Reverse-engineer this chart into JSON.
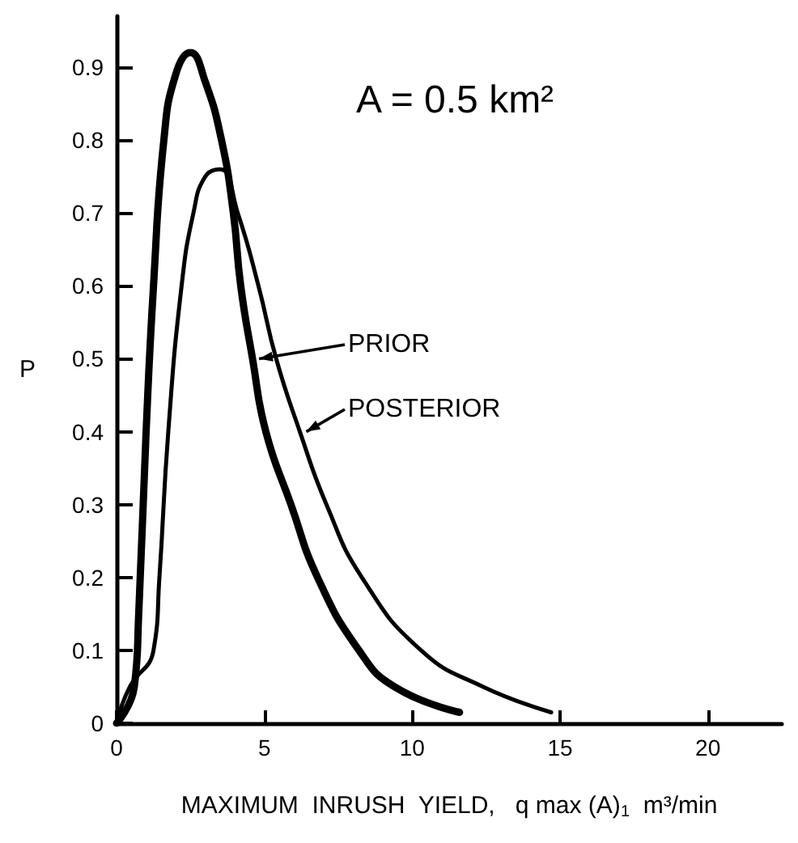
{
  "chart_data": {
    "type": "line",
    "xlabel": "MAXIMUM  INRUSH  YIELD,   q max (A)$_{1}$  m³/min",
    "ylabel": "P",
    "annotations": [
      "A = 0.5 km²"
    ],
    "xlim": [
      0,
      22.5
    ],
    "xticks": [
      0,
      5,
      10,
      15,
      20
    ],
    "ylim": [
      0,
      0.97
    ],
    "yticks": [
      {
        "value": 0,
        "label": "0"
      },
      {
        "value": 0.1,
        "label": "0.1"
      },
      {
        "value": 0.2,
        "label": "0.2"
      },
      {
        "value": 0.3,
        "label": "0.3"
      },
      {
        "value": 0.4,
        "label": "0.4"
      },
      {
        "value": 0.5,
        "label": "0.5"
      },
      {
        "value": 0.6,
        "label": "0.6"
      },
      {
        "value": 0.7,
        "label": "0.7"
      },
      {
        "value": 0.8,
        "label": "0.8"
      },
      {
        "value": 0.9,
        "label": "0.9"
      }
    ],
    "grid": false,
    "legend": "bottom left",
    "marker": "none",
    "line_style": "solid",
    "series": [
      {
        "name": "PRIOR",
        "color": "#000000",
        "x": [
          0,
          0.6,
          0.75,
          1.0,
          1.25,
          1.6,
          2.0,
          2.5,
          3.0,
          3.55,
          3.95,
          4.2,
          4.6,
          5.05,
          5.9,
          6.8,
          8.2,
          9.4,
          11.6
        ],
        "values": [
          0,
          0.05,
          0.15,
          0.4,
          0.6,
          0.8,
          0.89,
          0.92,
          0.88,
          0.8,
          0.7,
          0.6,
          0.5,
          0.4,
          0.3,
          0.2,
          0.1,
          0.05,
          0.015
        ]
      },
      {
        "name": "POSTERIOR",
        "color": "#000000",
        "x": [
          0,
          0.45,
          1.25,
          1.45,
          1.75,
          2.2,
          2.6,
          3.0,
          3.5,
          4.1,
          4.8,
          5.4,
          6.2,
          7.1,
          8.3,
          10.3,
          12.4,
          14.7
        ],
        "values": [
          0,
          0.05,
          0.1,
          0.2,
          0.4,
          0.6,
          0.7,
          0.75,
          0.76,
          0.7,
          0.6,
          0.5,
          0.4,
          0.3,
          0.2,
          0.1,
          0.05,
          0.015
        ]
      }
    ]
  }
}
